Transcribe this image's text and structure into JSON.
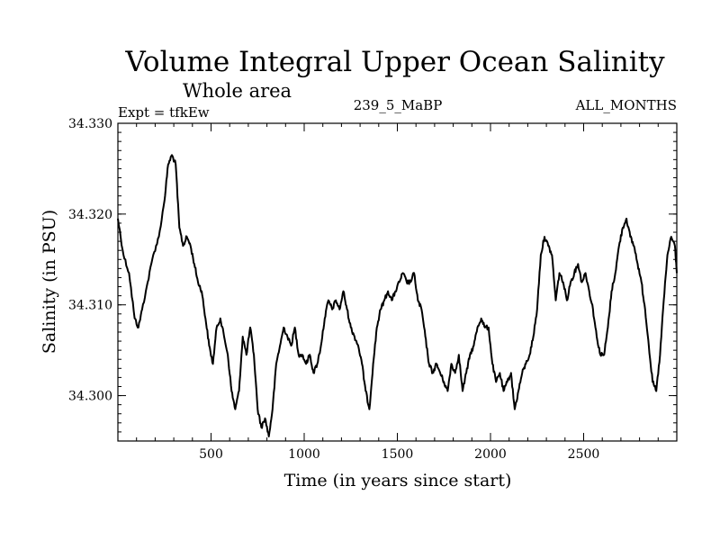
{
  "header": {
    "title": "Volume Integral Upper Ocean Salinity",
    "subtitle": "Whole area",
    "expt": "Expt = tfkEw",
    "run": "239_5_MaBP",
    "months": "ALL_MONTHS"
  },
  "chart_data": {
    "type": "line",
    "xlabel": "Time (in years since start)",
    "ylabel": "Salinity (in PSU)",
    "xlim": [
      0,
      3000
    ],
    "ylim": [
      34.295,
      34.33
    ],
    "x_ticks": [
      500,
      1000,
      1500,
      2000,
      2500
    ],
    "x_tick_labels": [
      "500",
      "1000",
      "1500",
      "2000",
      "2500"
    ],
    "y_ticks": [
      34.3,
      34.31,
      34.32,
      34.33
    ],
    "y_tick_labels": [
      "34.300",
      "34.310",
      "34.320",
      "34.330"
    ],
    "grid": false,
    "series": [
      {
        "color": "#000000",
        "x": [
          0,
          30,
          60,
          90,
          110,
          130,
          160,
          190,
          220,
          250,
          270,
          290,
          310,
          330,
          350,
          370,
          390,
          410,
          430,
          450,
          470,
          490,
          510,
          530,
          550,
          570,
          590,
          610,
          630,
          650,
          670,
          690,
          710,
          730,
          750,
          770,
          790,
          810,
          830,
          850,
          870,
          890,
          910,
          930,
          950,
          970,
          990,
          1010,
          1030,
          1050,
          1070,
          1090,
          1110,
          1130,
          1150,
          1170,
          1190,
          1210,
          1230,
          1250,
          1270,
          1290,
          1310,
          1330,
          1350,
          1370,
          1390,
          1410,
          1430,
          1450,
          1470,
          1490,
          1510,
          1530,
          1550,
          1570,
          1590,
          1610,
          1630,
          1650,
          1670,
          1690,
          1710,
          1730,
          1750,
          1770,
          1790,
          1810,
          1830,
          1850,
          1870,
          1890,
          1910,
          1930,
          1950,
          1970,
          1990,
          2010,
          2030,
          2050,
          2070,
          2090,
          2110,
          2130,
          2150,
          2170,
          2190,
          2210,
          2230,
          2250,
          2270,
          2290,
          2310,
          2330,
          2350,
          2370,
          2390,
          2410,
          2430,
          2450,
          2470,
          2490,
          2510,
          2530,
          2550,
          2570,
          2590,
          2610,
          2630,
          2650,
          2670,
          2690,
          2710,
          2730,
          2750,
          2770,
          2790,
          2810,
          2830,
          2850,
          2870,
          2890,
          2910,
          2930,
          2950,
          2970,
          2990,
          3000
        ],
        "values": [
          34.3195,
          34.3155,
          34.3135,
          34.3085,
          34.3075,
          34.3095,
          34.3125,
          34.3155,
          34.3175,
          34.3215,
          34.3255,
          34.3265,
          34.3255,
          34.3185,
          34.3165,
          34.3175,
          34.3165,
          34.3145,
          34.3125,
          34.3115,
          34.3085,
          34.3055,
          34.3035,
          34.3075,
          34.3085,
          34.3065,
          34.3045,
          34.3005,
          34.2985,
          34.3005,
          34.3065,
          34.3045,
          34.3075,
          34.3045,
          34.2985,
          34.2965,
          34.2975,
          34.2955,
          34.2985,
          34.3035,
          34.3055,
          34.3075,
          34.3065,
          34.3055,
          34.3075,
          34.3045,
          34.3045,
          34.3035,
          34.3045,
          34.3025,
          34.3035,
          34.3055,
          34.3085,
          34.3105,
          34.3095,
          34.3105,
          34.3095,
          34.3115,
          34.3095,
          34.3075,
          34.3065,
          34.3055,
          34.3035,
          34.3005,
          34.2985,
          34.3035,
          34.3075,
          34.3095,
          34.3105,
          34.3115,
          34.3105,
          34.3115,
          34.3125,
          34.3135,
          34.3125,
          34.3125,
          34.3135,
          34.3105,
          34.3095,
          34.3065,
          34.3035,
          34.3025,
          34.3035,
          34.3025,
          34.3015,
          34.3005,
          34.3035,
          34.3025,
          34.3045,
          34.3005,
          34.3025,
          34.3045,
          34.3055,
          34.3075,
          34.3085,
          34.3075,
          34.3075,
          34.3035,
          34.3015,
          34.3025,
          34.3005,
          34.3015,
          34.3025,
          34.2985,
          34.3005,
          34.3025,
          34.3035,
          34.3045,
          34.3065,
          34.3095,
          34.3155,
          34.3175,
          34.3165,
          34.3155,
          34.3105,
          34.3135,
          34.3125,
          34.3105,
          34.3125,
          34.3135,
          34.3145,
          34.3125,
          34.3135,
          34.3115,
          34.3095,
          34.3065,
          34.3045,
          34.3045,
          34.3075,
          34.3115,
          34.3135,
          34.3165,
          34.3185,
          34.3195,
          34.3175,
          34.3165,
          34.3145,
          34.3125,
          34.3095,
          34.3055,
          34.3015,
          34.3005,
          34.3045,
          34.3105,
          34.3155,
          34.3175,
          34.3165,
          34.3135
        ]
      }
    ]
  }
}
